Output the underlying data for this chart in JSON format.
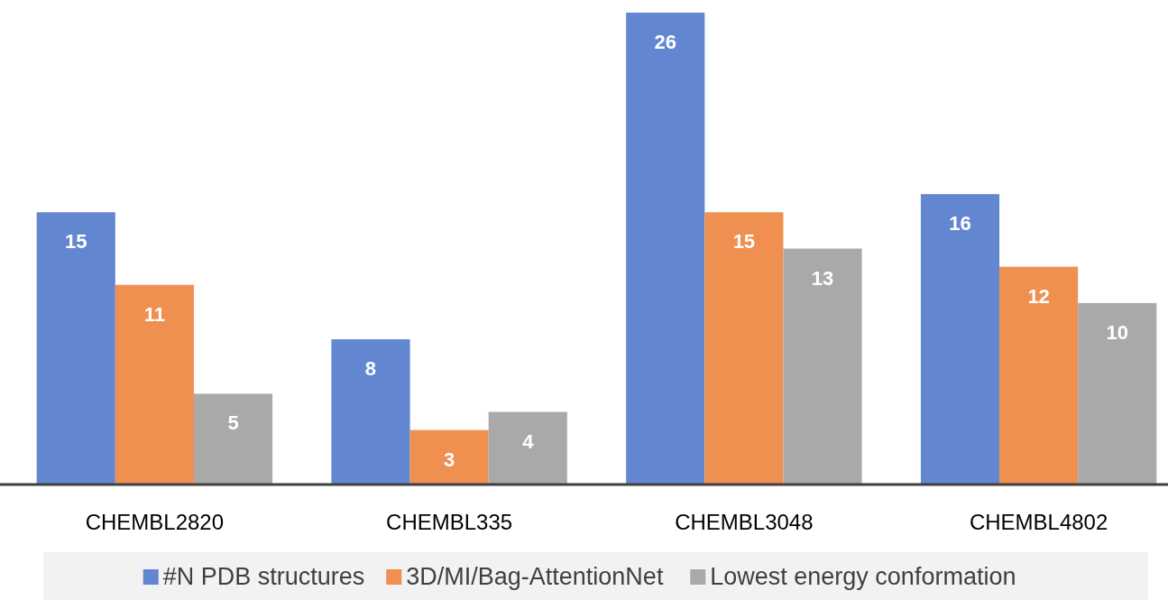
{
  "chart_data": {
    "type": "bar",
    "categories": [
      "CHEMBL2820",
      "CHEMBL335",
      "CHEMBL3048",
      "CHEMBL4802"
    ],
    "series": [
      {
        "name": "#N PDB structures",
        "color": "#6287d0",
        "values": [
          15,
          8,
          26,
          16
        ]
      },
      {
        "name": "3D/MI/Bag-AttentionNet",
        "color": "#ef8f50",
        "values": [
          11,
          3,
          15,
          12
        ]
      },
      {
        "name": "Lowest energy conformation",
        "color": "#a9a9a9",
        "values": [
          5,
          4,
          13,
          10
        ]
      }
    ],
    "data_labels": true,
    "legend": "bottom"
  }
}
